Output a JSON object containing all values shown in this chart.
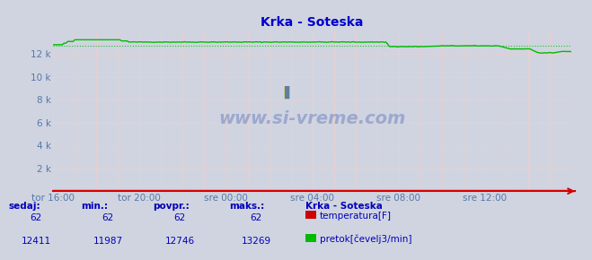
{
  "title": "Krka - Soteska",
  "bg_color": "#d0d4e0",
  "plot_bg_color": "#d0d4e0",
  "footer_bg": "#c8ccd8",
  "grid_v_color": "#e8d0d0",
  "grid_h_color": "#e8d0d0",
  "x_labels": [
    "tor 16:00",
    "tor 20:00",
    "sre 00:00",
    "sre 04:00",
    "sre 08:00",
    "sre 12:00"
  ],
  "x_ticks_pos": [
    0,
    48,
    96,
    144,
    192,
    240
  ],
  "total_points": 289,
  "y_min": 0,
  "y_max": 14000,
  "y_ticks": [
    2000,
    4000,
    6000,
    8000,
    10000,
    12000
  ],
  "y_tick_labels": [
    "2 k",
    "4 k",
    "6 k",
    "8 k",
    "10 k",
    "12 k"
  ],
  "temp_color": "#dd0000",
  "flow_color": "#00bb00",
  "flow_avg": 12746,
  "flow_min": 11987,
  "flow_max": 13269,
  "flow_current": 12411,
  "temp_min": 62,
  "temp_max": 62,
  "temp_avg": 62,
  "temp_current": 62,
  "axis_color": "#cc0000",
  "text_color": "#0000bb",
  "title_color": "#0000cc",
  "label_color": "#5577aa",
  "legend_title": "Krka - Soteska",
  "legend_temp_label": "temperatura[F]",
  "legend_flow_label": "pretok[čevelj3/min]",
  "sedaj_label": "sedaj:",
  "min_label": "min.:",
  "povpr_label": "povpr.:",
  "maks_label": "maks.:"
}
